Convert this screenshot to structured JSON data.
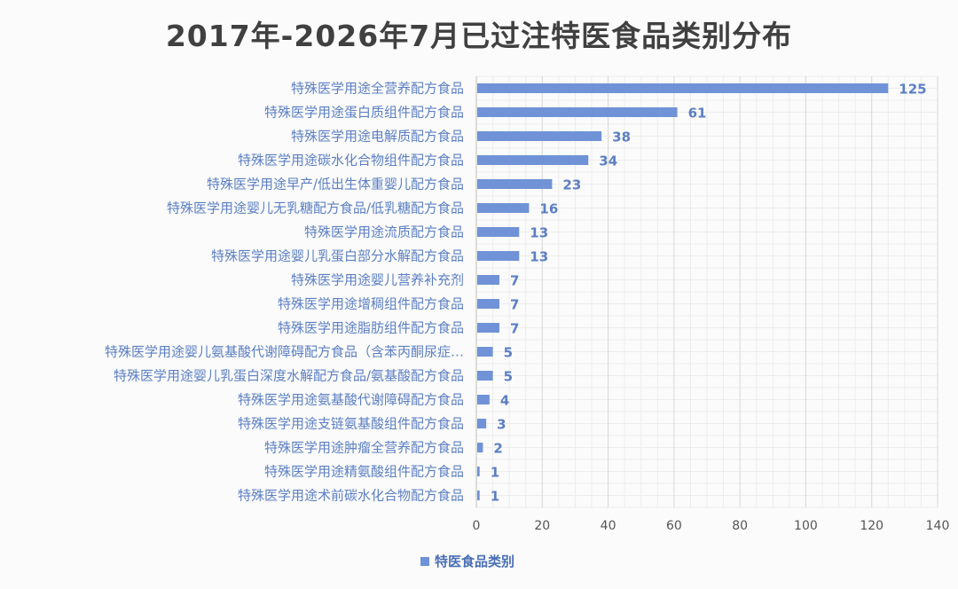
{
  "chart_data": {
    "type": "bar",
    "orientation": "horizontal",
    "title": "2017年-2026年7月已过注特医食品类别分布",
    "categories": [
      "特殊医学用途全营养配方食品",
      "特殊医学用途蛋白质组件配方食品",
      "特殊医学用途电解质配方食品",
      "特殊医学用途碳水化合物组件配方食品",
      "特殊医学用途早产/低出生体重婴儿配方食品",
      "特殊医学用途婴儿无乳糖配方食品/低乳糖配方食品",
      "特殊医学用途流质配方食品",
      "特殊医学用途婴儿乳蛋白部分水解配方食品",
      "特殊医学用途婴儿营养补充剂",
      "特殊医学用途增稠组件配方食品",
      "特殊医学用途脂肪组件配方食品",
      "特殊医学用途婴儿氨基酸代谢障碍配方食品（含苯丙酮尿症…",
      "特殊医学用途婴儿乳蛋白深度水解配方食品/氨基酸配方食品",
      "特殊医学用途氨基酸代谢障碍配方食品",
      "特殊医学用途支链氨基酸组件配方食品",
      "特殊医学用途肿瘤全营养配方食品",
      "特殊医学用途精氨酸组件配方食品",
      "特殊医学用途术前碳水化合物配方食品"
    ],
    "series": [
      {
        "name": "特医食品类别",
        "values": [
          125,
          61,
          38,
          34,
          23,
          16,
          13,
          13,
          7,
          7,
          7,
          5,
          5,
          4,
          3,
          2,
          1,
          1
        ]
      }
    ],
    "xlim": [
      0,
      140
    ],
    "xticks": [
      0,
      20,
      40,
      60,
      80,
      100,
      120,
      140
    ],
    "grid": true,
    "legend_position": "bottom",
    "bar_color": "#6f93d6"
  }
}
